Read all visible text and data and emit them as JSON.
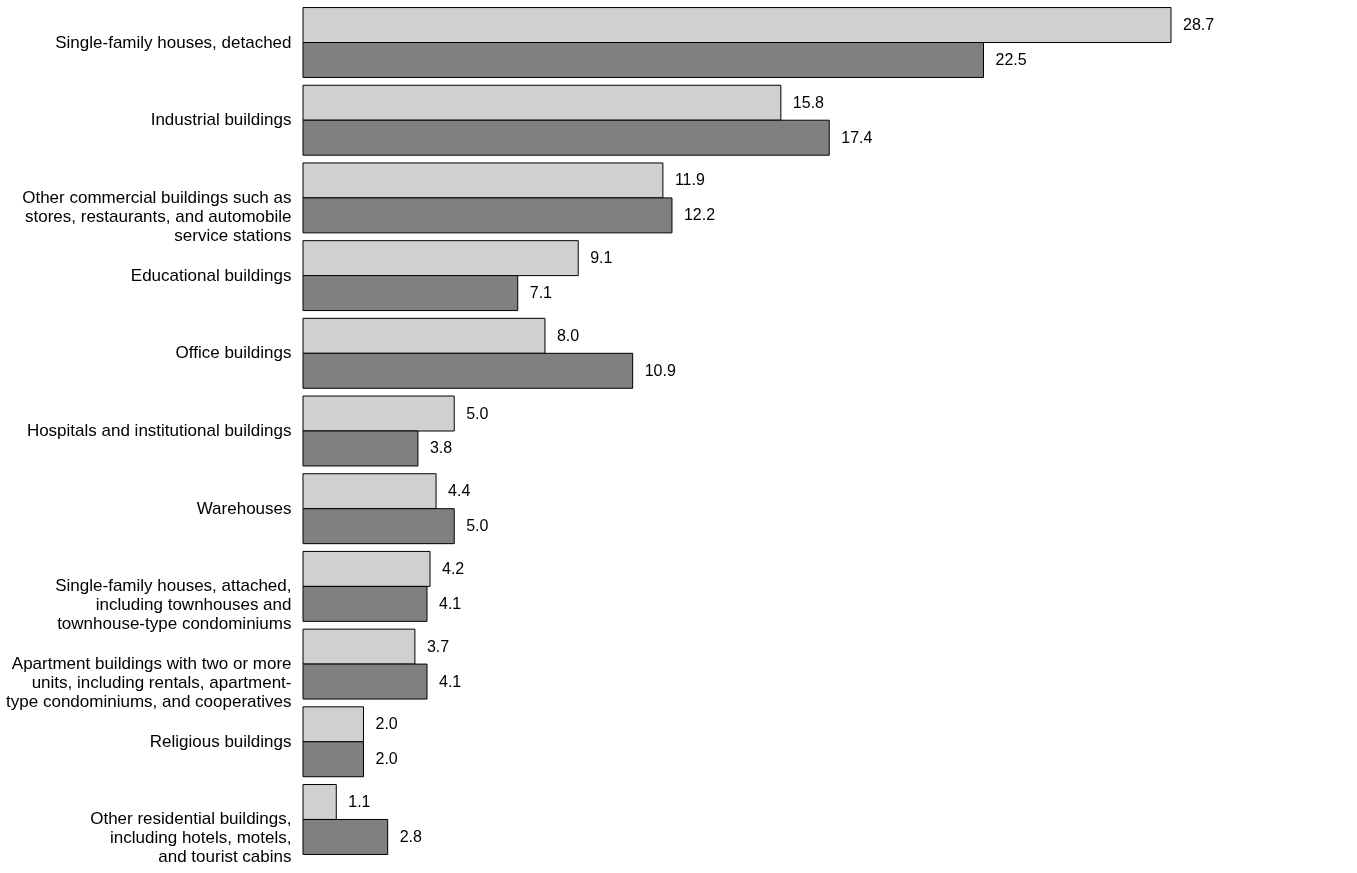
{
  "chart_data": {
    "type": "bar",
    "orientation": "horizontal",
    "categories": [
      "Single-family houses, detached",
      "Industrial buildings",
      "Other commercial buildings such as\nstores, restaurants, and automobile\nservice stations",
      "Educational buildings",
      "Office buildings",
      "Hospitals and institutional buildings",
      "Warehouses",
      "Single-family houses, attached,\nincluding townhouses and\ntownhouse-type condominiums",
      "Apartment buildings with two or more\nunits, including rentals, apartment-\ntype condominiums, and cooperatives",
      "Religious buildings",
      "Other residential buildings,\nincluding hotels, motels,\nand tourist cabins"
    ],
    "series": [
      {
        "color": "#d0d0d0",
        "values": [
          28.7,
          15.8,
          11.9,
          9.1,
          8.0,
          5.0,
          4.4,
          4.2,
          3.7,
          2.0,
          1.1
        ],
        "value_labels": [
          "28.7",
          "15.8",
          "11.9",
          "9.1",
          "8.0",
          "5.0",
          "4.4",
          "4.2",
          "3.7",
          "2.0",
          "1.1"
        ]
      },
      {
        "color": "#808080",
        "values": [
          22.5,
          17.4,
          12.2,
          7.1,
          10.9,
          3.8,
          5.0,
          4.1,
          4.1,
          2.0,
          2.8
        ],
        "value_labels": [
          "22.5",
          "17.4",
          "12.2",
          "7.1",
          "10.9",
          "3.8",
          "5.0",
          "4.1",
          "4.1",
          "2.0",
          "2.8"
        ]
      }
    ]
  }
}
